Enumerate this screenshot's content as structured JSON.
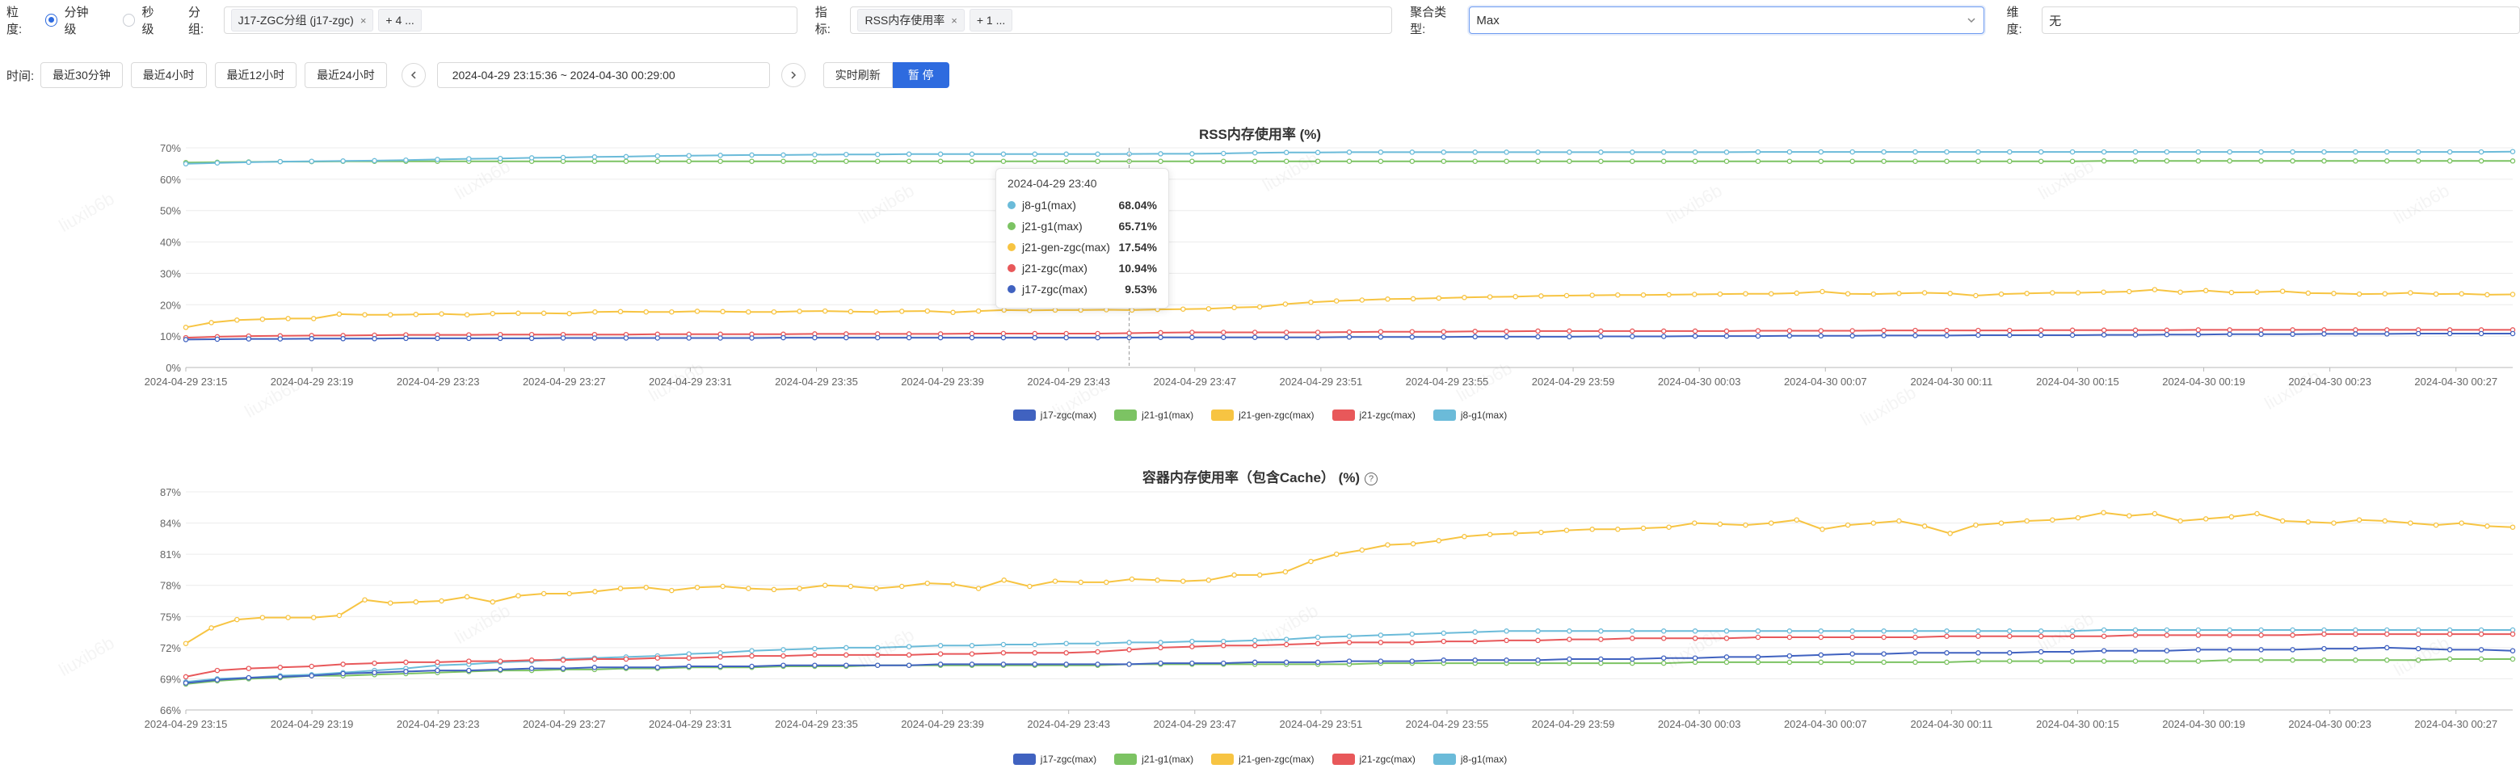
{
  "filters": {
    "granularity_label": "粒度:",
    "granularity_options": [
      {
        "label": "分钟级",
        "selected": true
      },
      {
        "label": "秒级",
        "selected": false
      }
    ],
    "group_label": "分组:",
    "group_tag": "J17-ZGC分组 (j17-zgc)",
    "group_more": "+ 4 ...",
    "metric_label": "指标:",
    "metric_tag": "RSS内存使用率",
    "metric_more": "+ 1 ...",
    "agg_label": "聚合类型:",
    "agg_value": "Max",
    "dim_label": "维度:",
    "dim_value": "无"
  },
  "time_bar": {
    "label": "时间:",
    "quick": [
      "最近30分钟",
      "最近4小时",
      "最近12小时",
      "最近24小时"
    ],
    "range": "2024-04-29 23:15:36  ~  2024-04-30 00:29:00",
    "refresh_label": "实时刷新",
    "pause_label": "暂 停"
  },
  "colors": {
    "j17-zgc": "#4062c0",
    "j21-g1": "#7cc363",
    "j21-gen-zgc": "#f7c442",
    "j21-zgc": "#e8585a",
    "j8-g1": "#6bbbd9",
    "accent": "#2e6bdf"
  },
  "watermark": "liuxib6b",
  "chart_data": [
    {
      "type": "line",
      "title": "RSS内存使用率 (%)",
      "x_ticks": [
        "2024-04-29 23:15",
        "2024-04-29 23:19",
        "2024-04-29 23:23",
        "2024-04-29 23:27",
        "2024-04-29 23:31",
        "2024-04-29 23:35",
        "2024-04-29 23:39",
        "2024-04-29 23:43",
        "2024-04-29 23:47",
        "2024-04-29 23:51",
        "2024-04-29 23:55",
        "2024-04-29 23:59",
        "2024-04-30 00:03",
        "2024-04-30 00:07",
        "2024-04-30 00:11",
        "2024-04-30 00:15",
        "2024-04-30 00:19",
        "2024-04-30 00:23",
        "2024-04-30 00:27"
      ],
      "ylim": [
        0,
        70
      ],
      "y_ticks": [
        "0%",
        "10%",
        "20%",
        "30%",
        "40%",
        "50%",
        "60%",
        "70%"
      ],
      "y_tick_values": [
        0,
        10,
        20,
        30,
        40,
        50,
        60,
        70
      ],
      "series": [
        {
          "name": "j8-g1(max)",
          "key": "j8-g1",
          "values": [
            64.9,
            65.2,
            65.4,
            65.6,
            65.7,
            65.8,
            65.9,
            66.1,
            66.3,
            66.5,
            66.6,
            66.8,
            66.9,
            67.1,
            67.2,
            67.4,
            67.5,
            67.6,
            67.7,
            67.7,
            67.8,
            67.9,
            67.9,
            68.0,
            68.0,
            68.0,
            68.0,
            68.0,
            68.0,
            68.0,
            68.04,
            68.1,
            68.1,
            68.2,
            68.4,
            68.5,
            68.5,
            68.6,
            68.6,
            68.6,
            68.6,
            68.6,
            68.6,
            68.6,
            68.6,
            68.6,
            68.6,
            68.6,
            68.6,
            68.6,
            68.7,
            68.7,
            68.7,
            68.7,
            68.7,
            68.7,
            68.7,
            68.7,
            68.7,
            68.7,
            68.7,
            68.7,
            68.7,
            68.7,
            68.7,
            68.7,
            68.7,
            68.7,
            68.7,
            68.7,
            68.7,
            68.7,
            68.7,
            68.7,
            68.8
          ]
        },
        {
          "name": "j21-g1(max)",
          "key": "j21-g1",
          "values": [
            65.3,
            65.4,
            65.5,
            65.6,
            65.6,
            65.7,
            65.7,
            65.7,
            65.7,
            65.7,
            65.7,
            65.7,
            65.7,
            65.7,
            65.7,
            65.7,
            65.7,
            65.7,
            65.7,
            65.7,
            65.7,
            65.7,
            65.7,
            65.7,
            65.7,
            65.7,
            65.7,
            65.7,
            65.7,
            65.7,
            65.71,
            65.7,
            65.7,
            65.7,
            65.7,
            65.7,
            65.7,
            65.7,
            65.7,
            65.7,
            65.7,
            65.7,
            65.7,
            65.7,
            65.7,
            65.7,
            65.7,
            65.7,
            65.7,
            65.7,
            65.7,
            65.7,
            65.7,
            65.7,
            65.7,
            65.7,
            65.7,
            65.7,
            65.7,
            65.7,
            65.7,
            65.8,
            65.8,
            65.8,
            65.8,
            65.8,
            65.8,
            65.8,
            65.8,
            65.8,
            65.8,
            65.8,
            65.8,
            65.8,
            65.8
          ]
        },
        {
          "name": "j21-gen-zgc(max)",
          "key": "j21-gen-zgc",
          "values": [
            12.8,
            14.3,
            15.1,
            15.4,
            15.6,
            15.6,
            17.0,
            16.8,
            16.8,
            16.9,
            17.1,
            16.8,
            17.2,
            17.3,
            17.3,
            17.2,
            17.7,
            17.8,
            17.7,
            17.7,
            17.9,
            17.8,
            17.7,
            17.7,
            17.9,
            18.0,
            17.8,
            17.7,
            17.9,
            18.0,
            17.54,
            18.0,
            18.3,
            18.2,
            18.3,
            18.3,
            18.4,
            18.3,
            18.5,
            18.6,
            18.7,
            19.1,
            19.3,
            20.2,
            20.8,
            21.2,
            21.5,
            21.8,
            21.9,
            22.1,
            22.3,
            22.5,
            22.6,
            22.8,
            22.9,
            23.0,
            23.1,
            23.1,
            23.2,
            23.3,
            23.4,
            23.5,
            23.5,
            23.7,
            24.2,
            23.5,
            23.4,
            23.6,
            23.8,
            23.6,
            22.9,
            23.4,
            23.6,
            23.8,
            23.8,
            24.0,
            24.2,
            24.8,
            24.0,
            24.5,
            23.9,
            24.0,
            24.3,
            23.7,
            23.6,
            23.4,
            23.5,
            23.8,
            23.4,
            23.5,
            23.2,
            23.3
          ]
        },
        {
          "name": "j21-zgc(max)",
          "key": "j21-zgc",
          "values": [
            9.5,
            9.8,
            10.0,
            10.1,
            10.2,
            10.2,
            10.3,
            10.4,
            10.4,
            10.4,
            10.5,
            10.5,
            10.5,
            10.5,
            10.5,
            10.6,
            10.6,
            10.6,
            10.6,
            10.6,
            10.7,
            10.7,
            10.7,
            10.7,
            10.7,
            10.8,
            10.8,
            10.8,
            10.8,
            10.8,
            10.94,
            11.1,
            11.2,
            11.2,
            11.2,
            11.2,
            11.2,
            11.3,
            11.4,
            11.4,
            11.4,
            11.5,
            11.5,
            11.6,
            11.6,
            11.6,
            11.6,
            11.6,
            11.6,
            11.6,
            11.7,
            11.7,
            11.7,
            11.7,
            11.8,
            11.8,
            11.8,
            11.8,
            11.8,
            11.9,
            11.9,
            11.9,
            11.9,
            11.9,
            12.0,
            12.0,
            12.0,
            12.0,
            12.0,
            12.0,
            12.0,
            12.0,
            12.0,
            12.0,
            12.0
          ]
        },
        {
          "name": "j17-zgc(max)",
          "key": "j17-zgc",
          "values": [
            8.9,
            9.0,
            9.1,
            9.1,
            9.2,
            9.2,
            9.2,
            9.3,
            9.3,
            9.3,
            9.3,
            9.3,
            9.4,
            9.4,
            9.4,
            9.4,
            9.4,
            9.4,
            9.4,
            9.5,
            9.5,
            9.5,
            9.5,
            9.5,
            9.5,
            9.5,
            9.5,
            9.5,
            9.5,
            9.5,
            9.53,
            9.6,
            9.6,
            9.6,
            9.6,
            9.6,
            9.6,
            9.7,
            9.7,
            9.7,
            9.7,
            9.8,
            9.8,
            9.8,
            9.8,
            9.9,
            9.9,
            9.9,
            10.0,
            10.0,
            10.0,
            10.1,
            10.1,
            10.1,
            10.2,
            10.2,
            10.2,
            10.3,
            10.3,
            10.3,
            10.3,
            10.4,
            10.4,
            10.5,
            10.5,
            10.6,
            10.6,
            10.6,
            10.7,
            10.7,
            10.7,
            10.8,
            10.8,
            10.8,
            10.8
          ]
        }
      ],
      "legend": [
        "j17-zgc(max)",
        "j21-g1(max)",
        "j21-gen-zgc(max)",
        "j21-zgc(max)",
        "j8-g1(max)"
      ],
      "tooltip": {
        "title": "2024-04-29 23:40",
        "rows": [
          {
            "name": "j8-g1(max)",
            "value": "68.04%",
            "key": "j8-g1"
          },
          {
            "name": "j21-g1(max)",
            "value": "65.71%",
            "key": "j21-g1"
          },
          {
            "name": "j21-gen-zgc(max)",
            "value": "17.54%",
            "key": "j21-gen-zgc"
          },
          {
            "name": "j21-zgc(max)",
            "value": "10.94%",
            "key": "j21-zgc"
          },
          {
            "name": "j17-zgc(max)",
            "value": "9.53%",
            "key": "j17-zgc"
          }
        ]
      }
    },
    {
      "type": "line",
      "title": "容器内存使用率（包含Cache） (%)",
      "x_ticks": [
        "2024-04-29 23:15",
        "2024-04-29 23:19",
        "2024-04-29 23:23",
        "2024-04-29 23:27",
        "2024-04-29 23:31",
        "2024-04-29 23:35",
        "2024-04-29 23:39",
        "2024-04-29 23:43",
        "2024-04-29 23:47",
        "2024-04-29 23:51",
        "2024-04-29 23:55",
        "2024-04-29 23:59",
        "2024-04-30 00:03",
        "2024-04-30 00:07",
        "2024-04-30 00:11",
        "2024-04-30 00:15",
        "2024-04-30 00:19",
        "2024-04-30 00:23",
        "2024-04-30 00:27"
      ],
      "ylim": [
        66,
        87
      ],
      "y_ticks": [
        "66%",
        "69%",
        "72%",
        "75%",
        "78%",
        "81%",
        "84%",
        "87%"
      ],
      "y_tick_values": [
        66,
        69,
        72,
        75,
        78,
        81,
        84,
        87
      ],
      "series": [
        {
          "name": "j8-g1(max)",
          "key": "j8-g1",
          "values": [
            68.7,
            69.0,
            69.1,
            69.3,
            69.4,
            69.6,
            69.8,
            70.0,
            70.3,
            70.4,
            70.6,
            70.7,
            70.9,
            71.0,
            71.1,
            71.2,
            71.4,
            71.5,
            71.7,
            71.8,
            71.9,
            72.0,
            72.0,
            72.1,
            72.2,
            72.2,
            72.3,
            72.3,
            72.4,
            72.4,
            72.5,
            72.5,
            72.6,
            72.6,
            72.7,
            72.8,
            73.0,
            73.1,
            73.2,
            73.3,
            73.4,
            73.5,
            73.6,
            73.6,
            73.6,
            73.6,
            73.6,
            73.6,
            73.6,
            73.6,
            73.6,
            73.6,
            73.6,
            73.6,
            73.6,
            73.6,
            73.6,
            73.6,
            73.6,
            73.6,
            73.6,
            73.7,
            73.7,
            73.7,
            73.7,
            73.7,
            73.7,
            73.7,
            73.7,
            73.7,
            73.7,
            73.7,
            73.7,
            73.7,
            73.7
          ]
        },
        {
          "name": "j21-g1(max)",
          "key": "j21-g1",
          "values": [
            68.5,
            68.8,
            69.0,
            69.1,
            69.3,
            69.3,
            69.4,
            69.5,
            69.6,
            69.7,
            69.8,
            69.8,
            69.9,
            69.9,
            70.0,
            70.0,
            70.1,
            70.1,
            70.1,
            70.2,
            70.2,
            70.2,
            70.3,
            70.3,
            70.3,
            70.3,
            70.3,
            70.3,
            70.3,
            70.3,
            70.4,
            70.4,
            70.4,
            70.4,
            70.4,
            70.4,
            70.4,
            70.4,
            70.5,
            70.5,
            70.5,
            70.5,
            70.5,
            70.5,
            70.5,
            70.5,
            70.5,
            70.5,
            70.6,
            70.6,
            70.6,
            70.6,
            70.6,
            70.6,
            70.6,
            70.6,
            70.6,
            70.7,
            70.7,
            70.7,
            70.7,
            70.7,
            70.7,
            70.7,
            70.7,
            70.8,
            70.8,
            70.8,
            70.8,
            70.8,
            70.8,
            70.8,
            70.9,
            70.9,
            70.9
          ]
        },
        {
          "name": "j21-gen-zgc(max)",
          "key": "j21-gen-zgc",
          "values": [
            72.4,
            73.9,
            74.7,
            74.9,
            74.9,
            74.9,
            75.1,
            76.6,
            76.3,
            76.4,
            76.5,
            76.9,
            76.4,
            77.0,
            77.2,
            77.2,
            77.4,
            77.7,
            77.8,
            77.5,
            77.8,
            77.9,
            77.7,
            77.6,
            77.7,
            78.0,
            77.9,
            77.7,
            77.9,
            78.2,
            78.1,
            77.7,
            78.5,
            77.9,
            78.4,
            78.3,
            78.3,
            78.6,
            78.5,
            78.4,
            78.5,
            79.0,
            79.0,
            79.3,
            80.3,
            81.0,
            81.4,
            81.9,
            82.0,
            82.3,
            82.7,
            82.9,
            83.0,
            83.1,
            83.3,
            83.4,
            83.4,
            83.5,
            83.6,
            84.0,
            83.9,
            83.8,
            84.0,
            84.3,
            83.4,
            83.8,
            84.0,
            84.2,
            83.7,
            83.0,
            83.8,
            84.0,
            84.2,
            84.3,
            84.5,
            85.0,
            84.7,
            84.9,
            84.2,
            84.4,
            84.6,
            84.9,
            84.2,
            84.1,
            84.0,
            84.3,
            84.2,
            84.0,
            83.8,
            84.0,
            83.7,
            83.6
          ]
        },
        {
          "name": "j21-zgc(max)",
          "key": "j21-zgc",
          "values": [
            69.2,
            69.8,
            70.0,
            70.1,
            70.2,
            70.4,
            70.5,
            70.6,
            70.6,
            70.7,
            70.7,
            70.8,
            70.8,
            70.9,
            70.9,
            71.0,
            71.0,
            71.1,
            71.2,
            71.2,
            71.3,
            71.3,
            71.3,
            71.3,
            71.4,
            71.4,
            71.5,
            71.5,
            71.5,
            71.6,
            71.8,
            72.0,
            72.1,
            72.2,
            72.2,
            72.3,
            72.4,
            72.5,
            72.5,
            72.5,
            72.6,
            72.6,
            72.7,
            72.7,
            72.8,
            72.8,
            72.9,
            72.9,
            72.9,
            72.9,
            73.0,
            73.0,
            73.0,
            73.0,
            73.0,
            73.0,
            73.1,
            73.1,
            73.1,
            73.1,
            73.1,
            73.1,
            73.2,
            73.2,
            73.2,
            73.2,
            73.2,
            73.2,
            73.3,
            73.3,
            73.3,
            73.3,
            73.3,
            73.3,
            73.3
          ]
        },
        {
          "name": "j17-zgc(max)",
          "key": "j17-zgc",
          "values": [
            68.6,
            68.9,
            69.1,
            69.2,
            69.3,
            69.5,
            69.6,
            69.7,
            69.8,
            69.8,
            69.9,
            70.0,
            70.0,
            70.1,
            70.1,
            70.1,
            70.2,
            70.2,
            70.2,
            70.3,
            70.3,
            70.3,
            70.3,
            70.3,
            70.4,
            70.4,
            70.4,
            70.4,
            70.4,
            70.4,
            70.4,
            70.5,
            70.5,
            70.5,
            70.6,
            70.6,
            70.6,
            70.7,
            70.7,
            70.7,
            70.8,
            70.8,
            70.8,
            70.8,
            70.9,
            70.9,
            70.9,
            71.0,
            71.0,
            71.1,
            71.1,
            71.2,
            71.3,
            71.4,
            71.4,
            71.5,
            71.5,
            71.5,
            71.5,
            71.6,
            71.6,
            71.7,
            71.7,
            71.7,
            71.8,
            71.8,
            71.8,
            71.8,
            71.9,
            71.9,
            72.0,
            71.9,
            71.8,
            71.8,
            71.7
          ]
        }
      ],
      "legend": [
        "j17-zgc(max)",
        "j21-g1(max)",
        "j21-gen-zgc(max)",
        "j21-zgc(max)",
        "j8-g1(max)"
      ]
    }
  ]
}
